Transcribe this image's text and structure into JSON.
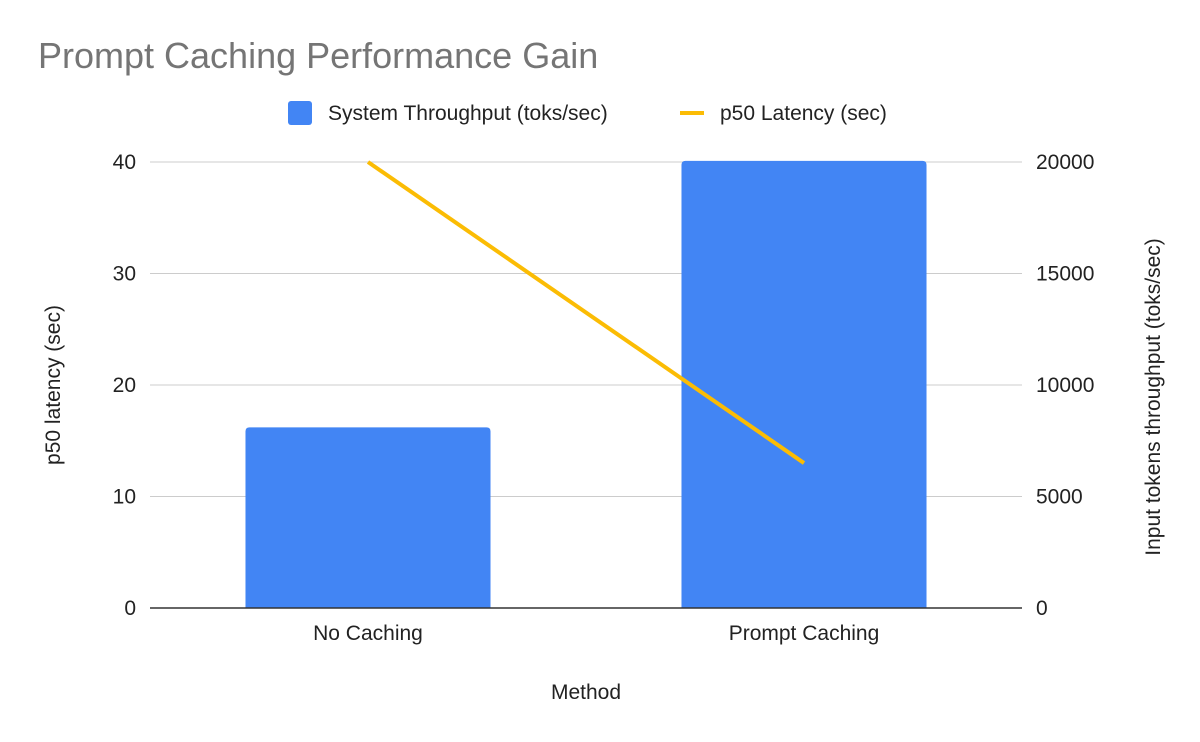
{
  "chart_data": {
    "type": "bar",
    "title": "Prompt Caching Performance Gain",
    "xlabel": "Method",
    "ylabel_left": "p50 latency (sec)",
    "ylabel_right": "Input tokens throughput (toks/sec)",
    "categories": [
      "No Caching",
      "Prompt Caching"
    ],
    "series": [
      {
        "name": "System Throughput (toks/sec)",
        "kind": "bar",
        "axis": "right",
        "color": "#4285f4",
        "values": [
          8100,
          20050
        ]
      },
      {
        "name": "p50 Latency (sec)",
        "kind": "line",
        "axis": "left",
        "color": "#fbbc04",
        "values": [
          40,
          13
        ]
      }
    ],
    "ylim_left": [
      0,
      40
    ],
    "yticks_left": [
      "0",
      "10",
      "20",
      "30",
      "40"
    ],
    "ylim_right": [
      0,
      20000
    ],
    "yticks_right": [
      "0",
      "5000",
      "10000",
      "15000",
      "20000"
    ],
    "grid": true,
    "legend": "top"
  }
}
